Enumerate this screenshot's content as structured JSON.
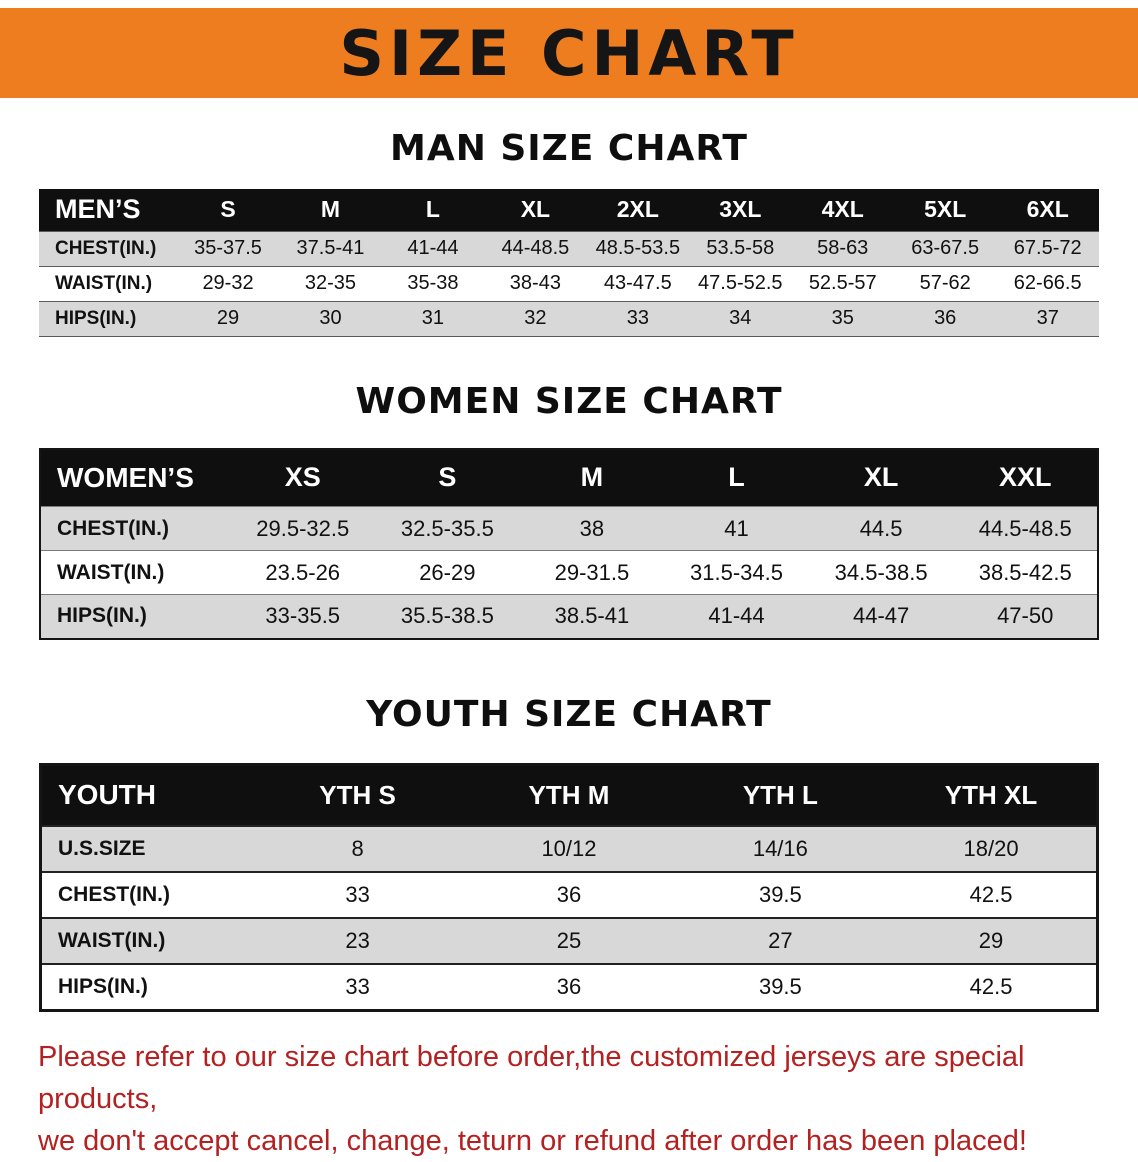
{
  "colors": {
    "banner-bg": "#ee7d1f",
    "banner-text": "#151515",
    "table-header-bg": "#0f0f0f",
    "table-header-text": "#ffffff",
    "row-alt-bg": "#d8d8d8",
    "footer-text": "#b42121"
  },
  "banner": {
    "title": "SIZE CHART"
  },
  "sections": {
    "men": {
      "title": "MAN SIZE CHART",
      "table": {
        "header": [
          "MEN’S",
          "S",
          "M",
          "L",
          "XL",
          "2XL",
          "3XL",
          "4XL",
          "5XL",
          "6XL"
        ],
        "rows": [
          [
            "CHEST(IN.)",
            "35-37.5",
            "37.5-41",
            "41-44",
            "44-48.5",
            "48.5-53.5",
            "53.5-58",
            "58-63",
            "63-67.5",
            "67.5-72"
          ],
          [
            "WAIST(IN.)",
            "29-32",
            "32-35",
            "35-38",
            "38-43",
            "43-47.5",
            "47.5-52.5",
            "52.5-57",
            "57-62",
            "62-66.5"
          ],
          [
            "HIPS(IN.)",
            "29",
            "30",
            "31",
            "32",
            "33",
            "34",
            "35",
            "36",
            "37"
          ]
        ]
      }
    },
    "women": {
      "title": "WOMEN SIZE CHART",
      "table": {
        "header": [
          "WOMEN’S",
          "XS",
          "S",
          "M",
          "L",
          "XL",
          "XXL"
        ],
        "rows": [
          [
            "CHEST(IN.)",
            "29.5-32.5",
            "32.5-35.5",
            "38",
            "41",
            "44.5",
            "44.5-48.5"
          ],
          [
            "WAIST(IN.)",
            "23.5-26",
            "26-29",
            "29-31.5",
            "31.5-34.5",
            "34.5-38.5",
            "38.5-42.5"
          ],
          [
            "HIPS(IN.)",
            "33-35.5",
            "35.5-38.5",
            "38.5-41",
            "41-44",
            "44-47",
            "47-50"
          ]
        ]
      }
    },
    "youth": {
      "title": "YOUTH SIZE CHART",
      "table": {
        "header": [
          "YOUTH",
          "YTH S",
          "YTH M",
          "YTH L",
          "YTH XL"
        ],
        "rows": [
          [
            "U.S.SIZE",
            "8",
            "10/12",
            "14/16",
            "18/20"
          ],
          [
            "CHEST(IN.)",
            "33",
            "36",
            "39.5",
            "42.5"
          ],
          [
            "WAIST(IN.)",
            "23",
            "25",
            "27",
            "29"
          ],
          [
            "HIPS(IN.)",
            "33",
            "36",
            "39.5",
            "42.5"
          ]
        ]
      }
    }
  },
  "footer": {
    "line1": "Please refer to our size chart before order,the customized jerseys are special products,",
    "line2": "we don't accept cancel, change, teturn or refund after order has been placed!"
  }
}
